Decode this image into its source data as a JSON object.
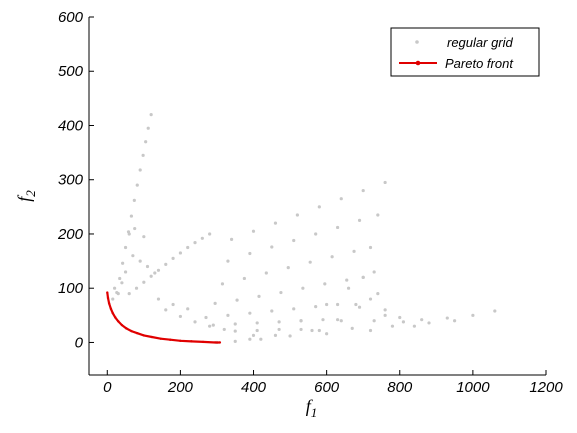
{
  "chart_data": {
    "type": "scatter",
    "title": "",
    "xlabel": "f",
    "xlabel_sub": "1",
    "ylabel": "f",
    "ylabel_sub": "2",
    "xlim": [
      -50,
      1200
    ],
    "ylim": [
      -60,
      600
    ],
    "xticks": [
      0,
      200,
      400,
      600,
      800,
      1000,
      1200
    ],
    "yticks": [
      0,
      100,
      200,
      300,
      400,
      500,
      600
    ],
    "legend_position": "top-right",
    "grid": false,
    "colors": {
      "grid_points": "#c8c8c8",
      "pareto": "#e00000",
      "axis": "#000000"
    },
    "series": [
      {
        "name": "regular grid",
        "kind": "points",
        "color": "#c8c8c8",
        "points": [
          [
            120,
            420
          ],
          [
            112,
            395
          ],
          [
            105,
            370
          ],
          [
            98,
            345
          ],
          [
            90,
            318
          ],
          [
            82,
            290
          ],
          [
            74,
            262
          ],
          [
            66,
            233
          ],
          [
            58,
            204
          ],
          [
            50,
            175
          ],
          [
            42,
            146
          ],
          [
            34,
            118
          ],
          [
            26,
            92
          ],
          [
            280,
            200
          ],
          [
            260,
            192
          ],
          [
            240,
            184
          ],
          [
            220,
            175
          ],
          [
            200,
            165
          ],
          [
            180,
            155
          ],
          [
            160,
            144
          ],
          [
            140,
            133
          ],
          [
            120,
            122
          ],
          [
            100,
            111
          ],
          [
            80,
            100
          ],
          [
            60,
            90
          ],
          [
            760,
            295
          ],
          [
            740,
            235
          ],
          [
            720,
            175
          ],
          [
            700,
            120
          ],
          [
            680,
            70
          ],
          [
            640,
            40
          ],
          [
            580,
            22
          ],
          [
            500,
            12
          ],
          [
            420,
            6
          ],
          [
            350,
            2
          ],
          [
            300,
            0
          ],
          [
            700,
            280
          ],
          [
            690,
            225
          ],
          [
            675,
            168
          ],
          [
            655,
            115
          ],
          [
            630,
            70
          ],
          [
            590,
            42
          ],
          [
            530,
            24
          ],
          [
            460,
            13
          ],
          [
            390,
            6
          ],
          [
            640,
            265
          ],
          [
            630,
            212
          ],
          [
            615,
            158
          ],
          [
            595,
            108
          ],
          [
            570,
            66
          ],
          [
            530,
            40
          ],
          [
            470,
            24
          ],
          [
            400,
            13
          ],
          [
            580,
            250
          ],
          [
            570,
            200
          ],
          [
            555,
            148
          ],
          [
            535,
            100
          ],
          [
            510,
            62
          ],
          [
            470,
            38
          ],
          [
            410,
            22
          ],
          [
            520,
            235
          ],
          [
            510,
            188
          ],
          [
            495,
            138
          ],
          [
            475,
            92
          ],
          [
            450,
            58
          ],
          [
            410,
            36
          ],
          [
            350,
            21
          ],
          [
            460,
            220
          ],
          [
            450,
            176
          ],
          [
            435,
            128
          ],
          [
            415,
            85
          ],
          [
            390,
            54
          ],
          [
            350,
            34
          ],
          [
            400,
            205
          ],
          [
            390,
            164
          ],
          [
            375,
            118
          ],
          [
            355,
            78
          ],
          [
            330,
            50
          ],
          [
            290,
            32
          ],
          [
            340,
            190
          ],
          [
            330,
            150
          ],
          [
            315,
            108
          ],
          [
            295,
            72
          ],
          [
            270,
            46
          ],
          [
            1060,
            58
          ],
          [
            1000,
            50
          ],
          [
            930,
            45
          ],
          [
            860,
            42
          ],
          [
            800,
            46
          ],
          [
            760,
            60
          ],
          [
            740,
            90
          ],
          [
            730,
            130
          ],
          [
            950,
            40
          ],
          [
            880,
            36
          ],
          [
            810,
            38
          ],
          [
            760,
            50
          ],
          [
            720,
            80
          ],
          [
            700,
            120
          ],
          [
            840,
            30
          ],
          [
            780,
            30
          ],
          [
            730,
            40
          ],
          [
            690,
            65
          ],
          [
            660,
            100
          ],
          [
            720,
            22
          ],
          [
            670,
            26
          ],
          [
            630,
            42
          ],
          [
            600,
            70
          ],
          [
            600,
            16
          ],
          [
            560,
            22
          ],
          [
            530,
            40
          ],
          [
            160,
            60
          ],
          [
            200,
            48
          ],
          [
            240,
            38
          ],
          [
            280,
            30
          ],
          [
            320,
            24
          ],
          [
            140,
            80
          ],
          [
            180,
            70
          ],
          [
            220,
            62
          ],
          [
            90,
            150
          ],
          [
            110,
            140
          ],
          [
            130,
            128
          ],
          [
            70,
            160
          ],
          [
            60,
            200
          ],
          [
            75,
            210
          ],
          [
            100,
            195
          ],
          [
            30,
            90
          ],
          [
            40,
            110
          ],
          [
            50,
            130
          ],
          [
            20,
            100
          ],
          [
            15,
            80
          ]
        ]
      },
      {
        "name": "Pareto front",
        "kind": "line",
        "color": "#e00000",
        "points": [
          [
            0,
            92
          ],
          [
            2,
            82
          ],
          [
            5,
            72
          ],
          [
            10,
            62
          ],
          [
            15,
            54
          ],
          [
            22,
            46
          ],
          [
            30,
            39
          ],
          [
            40,
            32
          ],
          [
            52,
            26
          ],
          [
            66,
            21
          ],
          [
            82,
            17
          ],
          [
            100,
            13
          ],
          [
            122,
            10
          ],
          [
            146,
            7
          ],
          [
            172,
            5
          ],
          [
            200,
            3
          ],
          [
            230,
            2
          ],
          [
            262,
            1
          ],
          [
            295,
            0
          ],
          [
            308,
            0
          ]
        ]
      }
    ]
  }
}
